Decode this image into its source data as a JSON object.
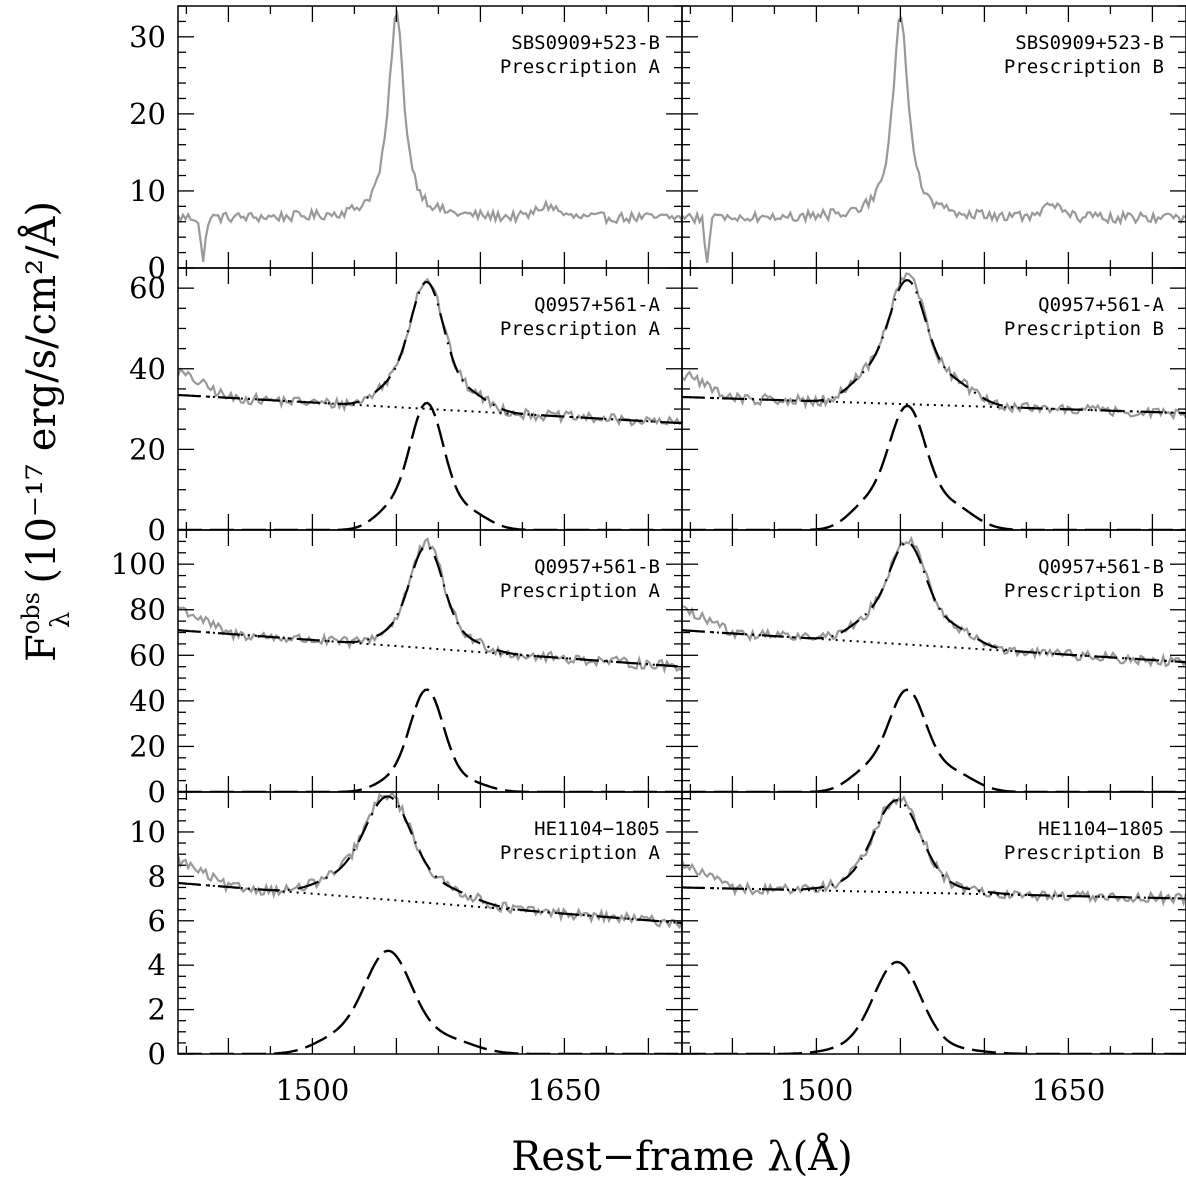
{
  "figure": {
    "xlabel": "Rest−frame λ(Å)",
    "ylabel": "(10⁻¹⁷ erg/s/cm²/Å)",
    "ylabel_symbol": "F",
    "ylabel_symbol_sup": "obs",
    "ylabel_symbol_sub": "λ"
  },
  "colors": {
    "observed": "#999999",
    "model": "#000000"
  },
  "chart_data": [
    {
      "type": "line",
      "object": "SBS0909+523-B",
      "prescription": "Prescription A",
      "xlim": [
        1420,
        1720
      ],
      "ylim": [
        0,
        34
      ],
      "yticks": [
        0,
        10,
        20,
        30
      ],
      "xticks": [
        1500,
        1650
      ],
      "xtick_labels": [
        "1500",
        "1650"
      ],
      "continuum": null,
      "line_center": 1550,
      "line_peak": 33,
      "wing": 15,
      "shoulder": 0
    },
    {
      "type": "line",
      "object": "SBS0909+523-B",
      "prescription": "Prescription B",
      "xlim": [
        1420,
        1720
      ],
      "ylim": [
        0,
        34
      ],
      "yticks": [
        0,
        10,
        20,
        30
      ],
      "xticks": [
        1500,
        1650
      ],
      "xtick_labels": [
        "1500",
        "1650"
      ],
      "continuum": null,
      "line_center": 1550,
      "line_peak": 33,
      "wing": 15,
      "shoulder": 0
    },
    {
      "type": "line",
      "object": "Q0957+561-A",
      "prescription": "Prescription A",
      "xlim": [
        1420,
        1720
      ],
      "ylim": [
        0,
        65
      ],
      "yticks": [
        0,
        20,
        40,
        60
      ],
      "xticks": [
        1500,
        1650
      ],
      "xtick_labels": [
        "1500",
        "1650"
      ],
      "continuum": [
        33.5,
        26.5
      ],
      "line_center": 1568,
      "line_peak": 30.5,
      "wing": 10,
      "shoulder": 0.15
    },
    {
      "type": "line",
      "object": "Q0957+561-A",
      "prescription": "Prescription B",
      "xlim": [
        1420,
        1720
      ],
      "ylim": [
        0,
        65
      ],
      "yticks": [
        0,
        20,
        40,
        60
      ],
      "xticks": [
        1500,
        1650
      ],
      "xtick_labels": [
        "1500",
        "1650"
      ],
      "continuum": [
        33,
        29
      ],
      "line_center": 1554,
      "line_peak": 29.5,
      "wing": 11,
      "shoulder": 0.2
    },
    {
      "type": "line",
      "object": "Q0957+561-B",
      "prescription": "Prescription A",
      "xlim": [
        1420,
        1720
      ],
      "ylim": [
        0,
        115
      ],
      "yticks": [
        0,
        20,
        40,
        60,
        80,
        100
      ],
      "xticks": [
        1500,
        1650
      ],
      "xtick_labels": [
        "1500",
        "1650"
      ],
      "continuum": [
        71,
        55
      ],
      "line_center": 1568,
      "line_peak": 44,
      "wing": 10,
      "shoulder": 0.1
    },
    {
      "type": "line",
      "object": "Q0957+561-B",
      "prescription": "Prescription B",
      "xlim": [
        1420,
        1720
      ],
      "ylim": [
        0,
        115
      ],
      "yticks": [
        0,
        20,
        40,
        60,
        80,
        100
      ],
      "xticks": [
        1500,
        1650
      ],
      "xtick_labels": [
        "1500",
        "1650"
      ],
      "continuum": [
        71,
        57
      ],
      "line_center": 1554,
      "line_peak": 43,
      "wing": 11,
      "shoulder": 0.2
    },
    {
      "type": "line",
      "object": "HE1104−1805",
      "prescription": "Prescription A",
      "xlim": [
        1420,
        1720
      ],
      "ylim": [
        0,
        11.8
      ],
      "yticks": [
        0,
        2,
        4,
        6,
        8,
        10
      ],
      "xticks": [
        1500,
        1650
      ],
      "xtick_labels": [
        "1500",
        "1650"
      ],
      "continuum": [
        7.7,
        5.9
      ],
      "line_center": 1545,
      "line_peak": 4.5,
      "wing": 14,
      "shoulder": 0.15
    },
    {
      "type": "line",
      "object": "HE1104−1805",
      "prescription": "Prescription B",
      "xlim": [
        1420,
        1720
      ],
      "ylim": [
        0,
        11.8
      ],
      "yticks": [
        0,
        2,
        4,
        6,
        8,
        10
      ],
      "xticks": [
        1500,
        1650
      ],
      "xtick_labels": [
        "1500",
        "1650"
      ],
      "continuum": [
        7.5,
        7.0
      ],
      "line_center": 1548,
      "line_peak": 4.1,
      "wing": 14,
      "shoulder": 0.05
    }
  ]
}
